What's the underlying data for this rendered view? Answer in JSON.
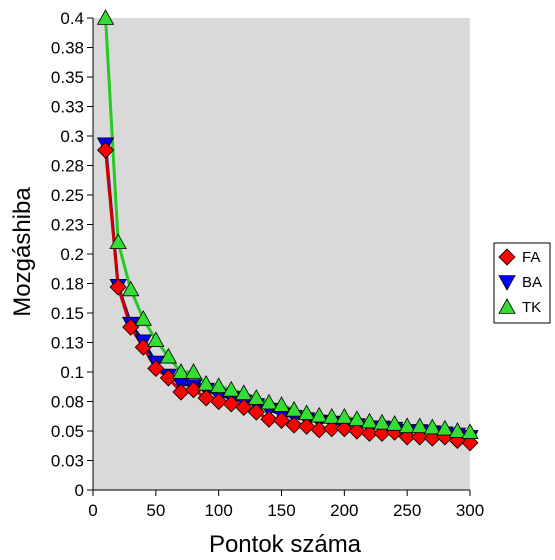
{
  "chart_data": {
    "type": "line",
    "xlabel": "Pontok száma",
    "ylabel": "Mozgáshiba",
    "xlim": [
      0,
      300
    ],
    "ylim": [
      0,
      0.4
    ],
    "x_ticks": [
      "0",
      "50",
      "100",
      "150",
      "200",
      "250",
      "300"
    ],
    "y_ticks": [
      "0",
      "0.03",
      "0.05",
      "0.08",
      "0.1",
      "0.13",
      "0.15",
      "0.18",
      "0.2",
      "0.23",
      "0.25",
      "0.28",
      "0.3",
      "0.33",
      "0.35",
      "0.38",
      "0.4"
    ],
    "grid": false,
    "legend": "right",
    "plot_background": "#d9d9d9",
    "x": [
      10,
      20,
      30,
      40,
      50,
      60,
      70,
      80,
      90,
      100,
      110,
      120,
      130,
      140,
      150,
      160,
      170,
      180,
      190,
      200,
      210,
      220,
      230,
      240,
      250,
      260,
      270,
      280,
      290,
      300
    ],
    "series": [
      {
        "name": "FA",
        "marker": "diamond",
        "color": "#ff0000",
        "line_color": "#cc0000",
        "values": [
          0.288,
          0.172,
          0.138,
          0.121,
          0.103,
          0.095,
          0.083,
          0.085,
          0.078,
          0.075,
          0.073,
          0.07,
          0.066,
          0.06,
          0.059,
          0.055,
          0.054,
          0.051,
          0.052,
          0.052,
          0.05,
          0.048,
          0.048,
          0.049,
          0.045,
          0.045,
          0.044,
          0.045,
          0.042,
          0.04
        ]
      },
      {
        "name": "BA",
        "marker": "triangle-down",
        "color": "#0000ff",
        "line_color": "#000080",
        "values": [
          0.293,
          0.173,
          0.141,
          0.126,
          0.108,
          0.097,
          0.09,
          0.088,
          0.085,
          0.08,
          0.078,
          0.075,
          0.072,
          0.068,
          0.064,
          0.062,
          0.06,
          0.058,
          0.057,
          0.055,
          0.055,
          0.053,
          0.053,
          0.052,
          0.05,
          0.05,
          0.049,
          0.048,
          0.047,
          0.045
        ]
      },
      {
        "name": "TK",
        "marker": "triangle-up",
        "color": "#33dd33",
        "line_color": "#22cc22",
        "values": [
          0.4,
          0.21,
          0.17,
          0.145,
          0.127,
          0.113,
          0.1,
          0.1,
          0.09,
          0.088,
          0.085,
          0.082,
          0.078,
          0.074,
          0.072,
          0.068,
          0.065,
          0.063,
          0.062,
          0.062,
          0.06,
          0.058,
          0.057,
          0.056,
          0.054,
          0.054,
          0.053,
          0.052,
          0.05,
          0.049
        ]
      }
    ]
  }
}
